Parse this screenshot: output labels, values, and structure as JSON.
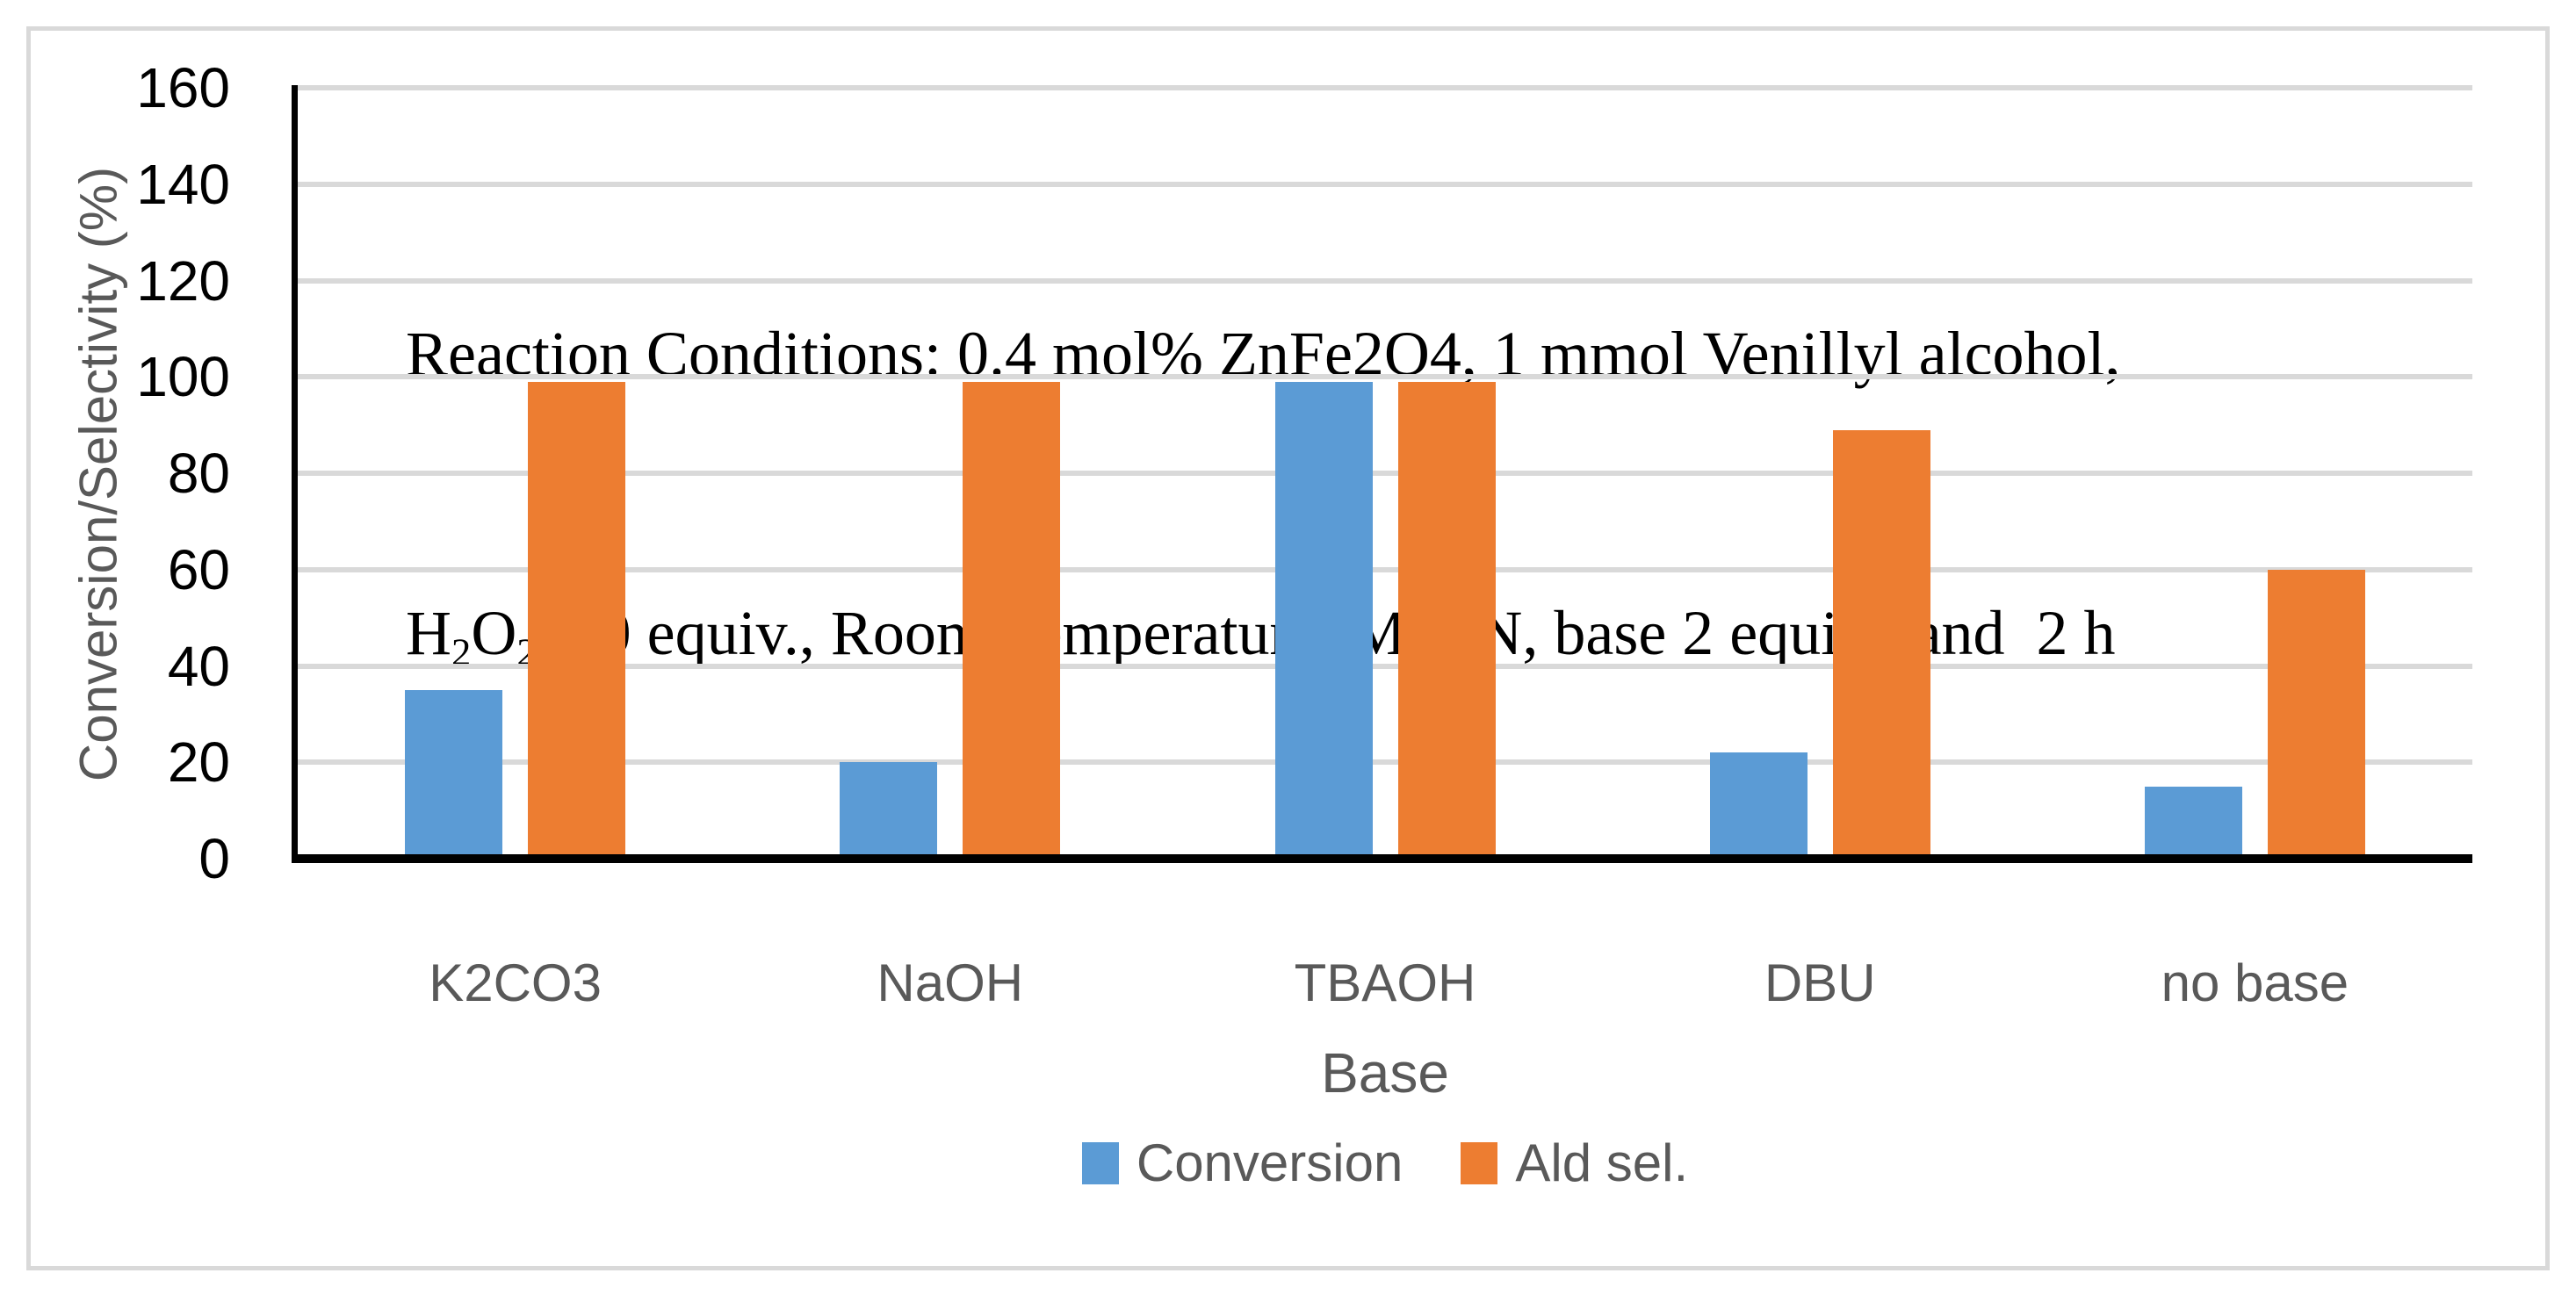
{
  "chart_data": {
    "type": "bar",
    "annotation_lines": [
      "Reaction Conditions: 0.4 mol% ZnFe2O4, 1 mmol Venillyl alcohol,",
      "H2O2 2.0 equiv., Room Temperature, MeCN, base 2 equiv., and  2 h"
    ],
    "annotation_line2_rich": [
      {
        "text": "H"
      },
      {
        "text": "2",
        "subscript": true
      },
      {
        "text": "O"
      },
      {
        "text": "2",
        "subscript": true
      },
      {
        "text": " 2.0 equiv., Room Temperature, MeCN, base 2 equiv., and  2 h"
      }
    ],
    "categories": [
      "K2CO3",
      "NaOH",
      "TBAOH",
      "DBU",
      "no base"
    ],
    "series": [
      {
        "name": "Conversion",
        "color": "#5B9BD5",
        "values": [
          35,
          20,
          99,
          22,
          15
        ]
      },
      {
        "name": "Ald sel.",
        "color": "#ED7D31",
        "values": [
          99,
          99,
          99,
          89,
          60
        ]
      }
    ],
    "xlabel": "Base",
    "ylabel": "Conversion/Selectivity (%)",
    "ylim": [
      0,
      160
    ],
    "yticks": [
      0,
      20,
      40,
      60,
      80,
      100,
      120,
      140,
      160
    ],
    "grid": true,
    "legend_position": "bottom",
    "colors": {
      "gridline": "#D9D9D9",
      "axis_line": "#000000",
      "tick_label": "#000000",
      "axis_title": "#595959",
      "category_label": "#595959",
      "legend_text": "#595959",
      "border": "#D9D9D9",
      "background": "#FFFFFF"
    }
  }
}
